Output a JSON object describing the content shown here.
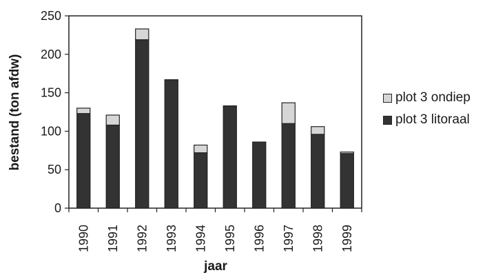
{
  "chart_data": {
    "type": "bar",
    "stacked": true,
    "categories": [
      "1990",
      "1991",
      "1992",
      "1993",
      "1994",
      "1995",
      "1996",
      "1997",
      "1998",
      "1999"
    ],
    "series": [
      {
        "name": "plot 3 litoraal",
        "color": "#333333",
        "values": [
          123,
          108,
          219,
          167,
          72,
          133,
          86,
          110,
          96,
          71
        ]
      },
      {
        "name": "plot 3 ondiep",
        "color": "#d6d6d6",
        "values": [
          7,
          13,
          14,
          0,
          10,
          0,
          0,
          27,
          10,
          2
        ]
      }
    ],
    "xlabel": "jaar",
    "ylabel": "bestand (ton afdw)",
    "ylim": [
      0,
      250
    ],
    "yticks": [
      "0",
      "50",
      "100",
      "150",
      "200",
      "250"
    ],
    "grid": false,
    "legend": "right"
  }
}
